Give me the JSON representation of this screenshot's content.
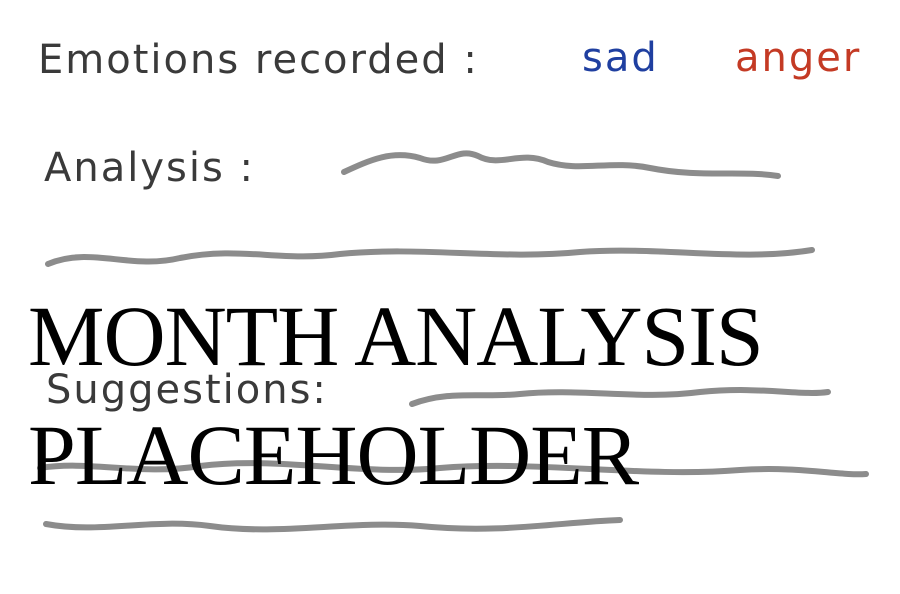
{
  "note": {
    "emotions_label": "Emotions recorded :",
    "emotions": [
      {
        "label": "sad",
        "color": "#1f3fa0"
      },
      {
        "label": "anger",
        "color": "#c43a24"
      }
    ],
    "analysis_label": "Analysis :",
    "suggestions_label": "Suggestions:",
    "scribble_color": "#8c8c8c",
    "text_color": "#3a3a3a"
  },
  "overlay": {
    "line1": "MONTH ANALYSIS",
    "line2": "PLACEHOLDER"
  }
}
